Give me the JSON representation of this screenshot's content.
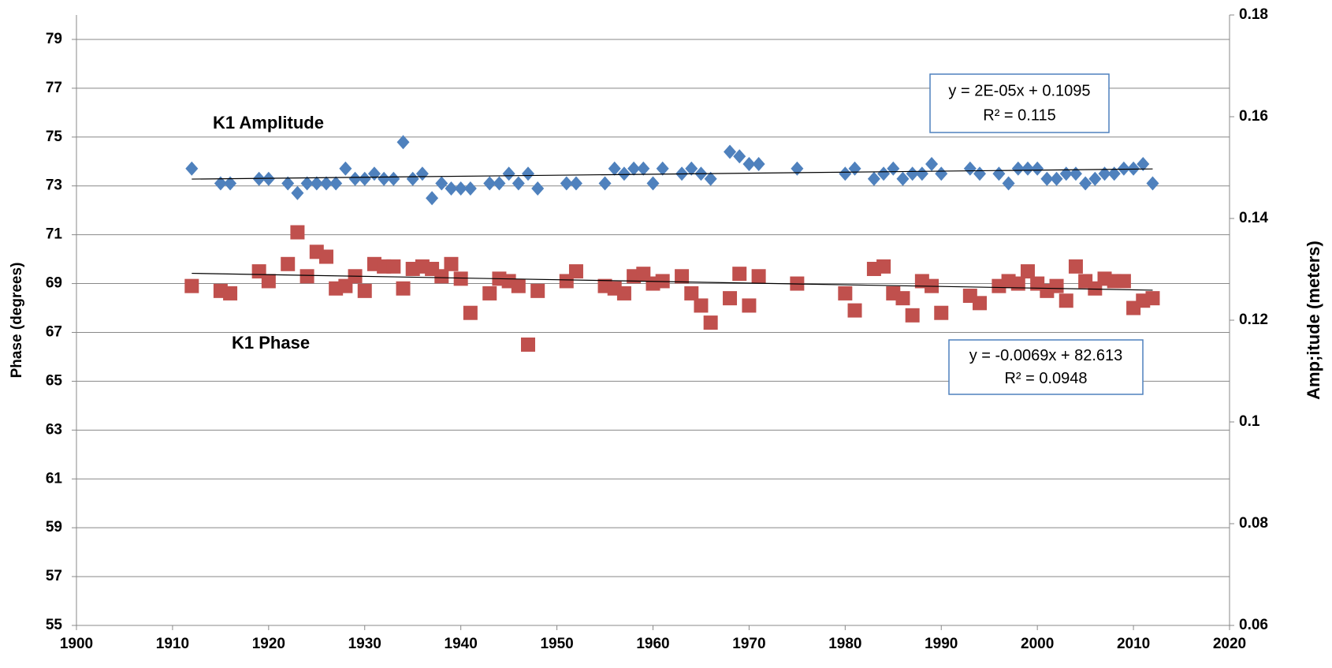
{
  "chart_data": {
    "type": "scatter",
    "y_label": "Phase (degrees)",
    "y2_label": "Amp;itude (meters)",
    "xlim": [
      1900,
      2020
    ],
    "xticks": [
      1900,
      1910,
      1920,
      1930,
      1940,
      1950,
      1960,
      1970,
      1980,
      1990,
      2000,
      2010,
      2020
    ],
    "ylim": [
      55,
      80
    ],
    "yticks": [
      55,
      57,
      59,
      61,
      63,
      65,
      67,
      69,
      71,
      73,
      75,
      77,
      79
    ],
    "y2lim": [
      0.06,
      0.18
    ],
    "y2ticks": [
      0.06,
      0.08,
      0.1,
      0.12,
      0.14,
      0.16,
      0.18
    ],
    "grid": true,
    "x": [
      1912,
      1915,
      1916,
      1919,
      1920,
      1922,
      1923,
      1924,
      1925,
      1926,
      1927,
      1928,
      1929,
      1930,
      1931,
      1932,
      1933,
      1934,
      1935,
      1936,
      1937,
      1938,
      1939,
      1940,
      1941,
      1943,
      1944,
      1945,
      1946,
      1947,
      1948,
      1951,
      1952,
      1955,
      1956,
      1957,
      1958,
      1959,
      1960,
      1961,
      1963,
      1964,
      1965,
      1966,
      1968,
      1969,
      1970,
      1971,
      1975,
      1980,
      1981,
      1983,
      1984,
      1985,
      1986,
      1987,
      1988,
      1989,
      1990,
      1993,
      1994,
      1996,
      1997,
      1998,
      1999,
      2000,
      2001,
      2002,
      2003,
      2004,
      2005,
      2006,
      2007,
      2008,
      2009,
      2010,
      2011,
      2012
    ],
    "series": [
      {
        "name": "K1 Amplitude",
        "axis": "y2",
        "marker": "diamond",
        "color": "#4f81bd",
        "values": [
          0.1498,
          0.1469,
          0.1469,
          0.1478,
          0.1478,
          0.1469,
          0.145,
          0.1469,
          0.1469,
          0.1469,
          0.1469,
          0.1498,
          0.1478,
          0.1478,
          0.1488,
          0.1478,
          0.1478,
          0.155,
          0.1478,
          0.1488,
          0.144,
          0.1469,
          0.1459,
          0.1459,
          0.1459,
          0.1469,
          0.1469,
          0.1488,
          0.1469,
          0.1488,
          0.1459,
          0.1469,
          0.1469,
          0.1469,
          0.1498,
          0.1488,
          0.1498,
          0.1498,
          0.1469,
          0.1498,
          0.1488,
          0.1498,
          0.1488,
          0.1478,
          0.1531,
          0.1522,
          0.1507,
          0.1507,
          0.1498,
          0.1488,
          0.1498,
          0.1478,
          0.1488,
          0.1498,
          0.1478,
          0.1488,
          0.1488,
          0.1507,
          0.1488,
          0.1498,
          0.1488,
          0.1488,
          0.1469,
          0.1498,
          0.1498,
          0.1498,
          0.1478,
          0.1478,
          0.1488,
          0.1488,
          0.1469,
          0.1478,
          0.1488,
          0.1488,
          0.1498,
          0.1498,
          0.1507,
          0.1469
        ],
        "trendline": {
          "slope": 2e-05,
          "intercept": 0.1095,
          "equation": "y = 2E-05x + 0.1095",
          "r2": "R² = 0.115"
        }
      },
      {
        "name": "K1 Phase",
        "axis": "y",
        "marker": "square",
        "color": "#c0504d",
        "values": [
          68.9,
          68.7,
          68.6,
          69.5,
          69.1,
          69.8,
          71.1,
          69.3,
          70.3,
          70.1,
          68.8,
          68.9,
          69.3,
          68.7,
          69.8,
          69.7,
          69.7,
          68.8,
          69.6,
          69.7,
          69.6,
          69.3,
          69.8,
          69.2,
          67.8,
          68.6,
          69.2,
          69.1,
          68.9,
          66.5,
          68.7,
          69.1,
          69.5,
          68.9,
          68.8,
          68.6,
          69.3,
          69.4,
          69.0,
          69.1,
          69.3,
          68.6,
          68.1,
          67.4,
          68.4,
          69.4,
          68.1,
          69.3,
          69.0,
          68.6,
          67.9,
          69.6,
          69.7,
          68.6,
          68.4,
          67.7,
          69.1,
          68.9,
          67.8,
          68.5,
          68.2,
          68.9,
          69.1,
          69.0,
          69.5,
          69.0,
          68.7,
          68.9,
          68.3,
          69.7,
          69.1,
          68.8,
          69.2,
          69.1,
          69.1,
          68.0,
          68.3,
          68.4
        ],
        "trendline": {
          "slope": -0.0069,
          "intercept": 82.613,
          "equation": "y = -0.0069x + 82.613",
          "r2": "R² = 0.0948"
        }
      }
    ]
  }
}
